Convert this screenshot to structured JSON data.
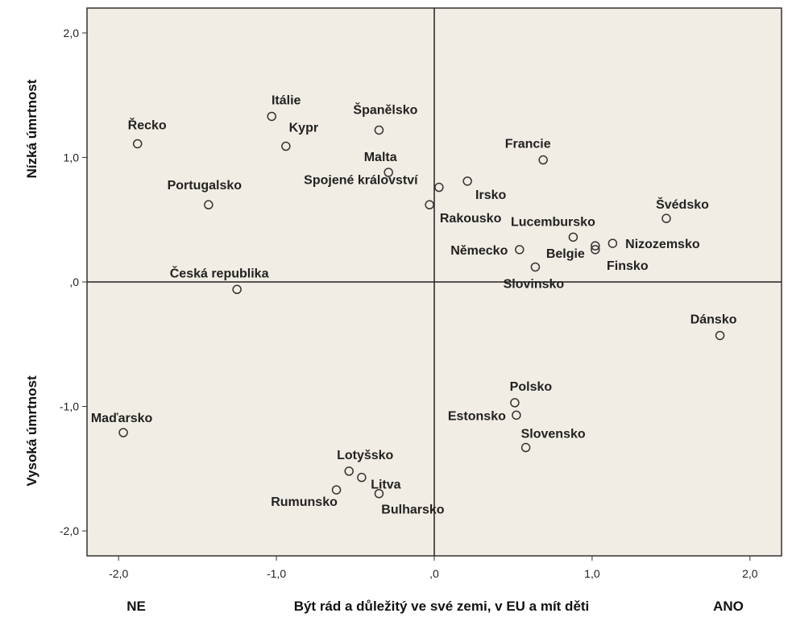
{
  "chart_data": {
    "type": "scatter",
    "xlim": [
      -2.2,
      2.2
    ],
    "ylim": [
      -2.2,
      2.2
    ],
    "x_ticks": [
      {
        "value": -2,
        "label": "-2,0"
      },
      {
        "value": -1,
        "label": "-1,0"
      },
      {
        "value": 0,
        "label": ",0"
      },
      {
        "value": 1,
        "label": "1,0"
      },
      {
        "value": 2,
        "label": "2,0"
      }
    ],
    "y_ticks": [
      {
        "value": 2,
        "label": "2,0"
      },
      {
        "value": 1,
        "label": "1,0"
      },
      {
        "value": 0,
        "label": ",0"
      },
      {
        "value": -1,
        "label": "-1,0"
      },
      {
        "value": -2,
        "label": "-2,0"
      }
    ],
    "xlabel": "Být rád a důležitý ve své zemi, v EU a mít děti",
    "xlabel_left": "NE",
    "xlabel_right": "ANO",
    "ylabel_top": "Nízká úmrtnost",
    "ylabel_bottom": "Vysoká úmrtnost",
    "reference_lines": {
      "x": 0,
      "y": 0
    },
    "grid": false,
    "colors": {
      "plot_background": "#f1ede4",
      "marker_stroke": "#333333"
    },
    "points": [
      {
        "label": "Řecko",
        "x": -1.88,
        "y": 1.11
      },
      {
        "label": "Itálie",
        "x": -1.03,
        "y": 1.33
      },
      {
        "label": "Kypr",
        "x": -0.94,
        "y": 1.09
      },
      {
        "label": "Španělsko",
        "x": -0.35,
        "y": 1.22
      },
      {
        "label": "Malta",
        "x": -0.29,
        "y": 0.88
      },
      {
        "label": "Portugalsko",
        "x": -1.43,
        "y": 0.62
      },
      {
        "label": "Spojené království",
        "x": 0.03,
        "y": 0.76
      },
      {
        "label": "Rakousko",
        "x": -0.03,
        "y": 0.62
      },
      {
        "label": "Irsko",
        "x": 0.21,
        "y": 0.81
      },
      {
        "label": "Francie",
        "x": 0.69,
        "y": 0.98
      },
      {
        "label": "Švédsko",
        "x": 1.47,
        "y": 0.51
      },
      {
        "label": "Lucembursko",
        "x": 0.88,
        "y": 0.36
      },
      {
        "label": "Německo",
        "x": 0.54,
        "y": 0.26
      },
      {
        "label": "Belgie",
        "x": 1.02,
        "y": 0.26
      },
      {
        "label": "Nizozemsko",
        "x": 1.13,
        "y": 0.31
      },
      {
        "label": "Finsko",
        "x": 1.02,
        "y": 0.29
      },
      {
        "label": "Slovinsko",
        "x": 0.64,
        "y": 0.12
      },
      {
        "label": "Česká republika",
        "x": -1.25,
        "y": -0.06
      },
      {
        "label": "Dánsko",
        "x": 1.81,
        "y": -0.43
      },
      {
        "label": "Polsko",
        "x": 0.51,
        "y": -0.97
      },
      {
        "label": "Estonsko",
        "x": 0.52,
        "y": -1.07
      },
      {
        "label": "Slovensko",
        "x": 0.58,
        "y": -1.33
      },
      {
        "label": "Maďarsko",
        "x": -1.97,
        "y": -1.21
      },
      {
        "label": "Lotyšsko",
        "x": -0.54,
        "y": -1.52
      },
      {
        "label": "Litva",
        "x": -0.46,
        "y": -1.57
      },
      {
        "label": "Rumunsko",
        "x": -0.62,
        "y": -1.67
      },
      {
        "label": "Bulharsko",
        "x": -0.35,
        "y": -1.7
      }
    ]
  }
}
